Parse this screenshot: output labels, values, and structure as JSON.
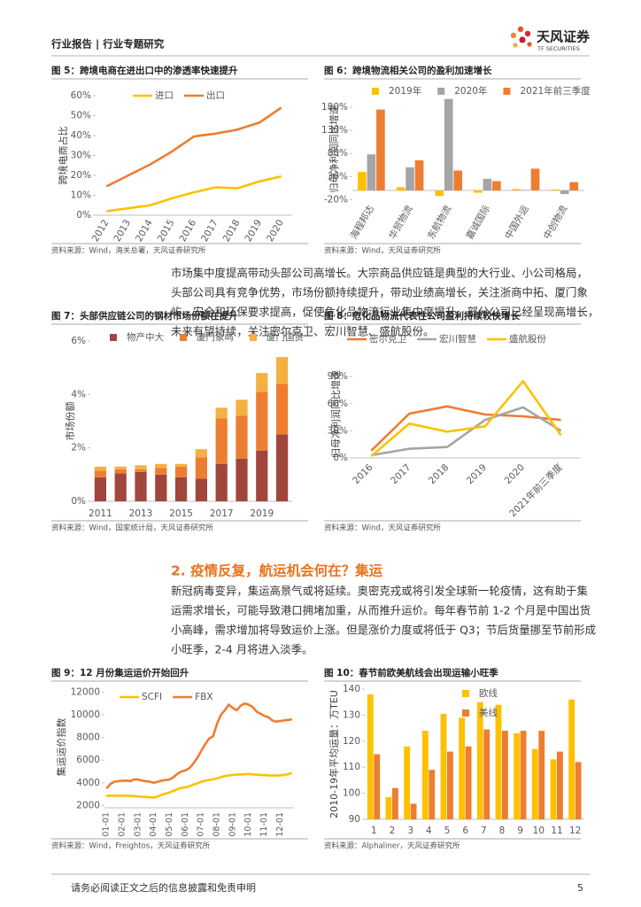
{
  "header": {
    "title": "行业报告 | 行业专题研究",
    "logo": "天风证券",
    "logo_sub": "TF SECURITIES"
  },
  "paragraphs": [
    [
      "市场集中度提高带动头部公司高增长。大宗商品供应链是典型的大行业、小公司格局，",
      "头部公司具有竞争优势，市场份额持续提升，带动业绩高增长，关注浙商中拓、厦门象",
      "屿。安全和环保要求提高，促使危化品物流行业集中度提升，部分公司已经呈现高增长，",
      "未来有望持续，关注密尔克卫、宏川智慧、盛航股份。"
    ],
    [
      "新冠病毒变异，集运高景气或将延续。奥密克戎或将引发全球新一轮疫情，这有助于集",
      "运需求增长，可能导致港口拥堵加重，从而推升运价。每年春节前 1-2 个月是中国出货",
      "小高峰，需求增加将导致运价上涨。但是涨价力度或将低于 Q3；节后货量挪至节前形成",
      "小旺季，2-4 月将进入淡季。"
    ]
  ],
  "section_heading": "2. 疫情反复，航运机会何在？集运",
  "footer": {
    "disclaimer": "请务必阅读正文之后的信息披露和免责申明",
    "page": 5
  },
  "chart_data": [
    {
      "type": "line",
      "title": "图 5：跨境电商在进出口中的渗透率快速提升",
      "source": "资料来源：Wind，海关总署，天风证券研究所",
      "ylabel": "跨境电商占比",
      "categories": [
        "2012",
        "2013",
        "2014",
        "2015",
        "2016",
        "2017",
        "2018",
        "2019",
        "2020"
      ],
      "series": [
        {
          "name": "进口",
          "color": "#ffc000",
          "values": [
            2,
            3.5,
            5,
            8.5,
            11.5,
            14,
            13.5,
            17,
            19.5
          ]
        },
        {
          "name": "出口",
          "color": "#ed7d31",
          "values": [
            14.5,
            20,
            25.5,
            32,
            39.5,
            41,
            43,
            46.5,
            54
          ]
        }
      ],
      "ylim": [
        0,
        60
      ],
      "yticks": [
        {
          "value": 0,
          "label": "0%"
        },
        {
          "value": 10,
          "label": "10%"
        },
        {
          "value": 20,
          "label": "20%"
        },
        {
          "value": 30,
          "label": "30%"
        },
        {
          "value": 40,
          "label": "40%"
        },
        {
          "value": 50,
          "label": "50%"
        },
        {
          "value": 60,
          "label": "60%"
        }
      ]
    },
    {
      "type": "bar",
      "title": "图 6：跨境物流相关公司的盈利加速增长",
      "source": "资料来源：Wind，天风证券研究所",
      "ylabel": "归母净利润同比增速",
      "categories": [
        "海程邦达",
        "华贸物流",
        "东航物流",
        "嘉诚国际",
        "中国外运",
        "中创物流"
      ],
      "series": [
        {
          "name": "2019年",
          "color": "#ffc000",
          "values": [
            40,
            7,
            -12,
            -5,
            3,
            2
          ]
        },
        {
          "name": "2020年",
          "color": "#a5a5a5",
          "values": [
            78,
            50,
            198,
            25,
            1,
            -8
          ]
        },
        {
          "name": "2021年前三季度",
          "color": "#ed7d31",
          "values": [
            175,
            65,
            43,
            20,
            47,
            18
          ]
        }
      ],
      "ylim": [
        -25,
        205
      ],
      "yticks": [
        {
          "value": -20,
          "label": "-20%"
        },
        {
          "value": 30,
          "label": "30%"
        },
        {
          "value": 80,
          "label": "80%"
        },
        {
          "value": 130,
          "label": "130%"
        },
        {
          "value": 180,
          "label": "180%"
        }
      ]
    },
    {
      "type": "bar",
      "stacked": true,
      "title": "图 7：头部供应链公司的钢材市场份额在提升",
      "source": "资料来源：Wind，国家统计局，天风证券研究所",
      "ylabel": "市场份额",
      "categories": [
        "2011",
        null,
        "2013",
        null,
        "2015",
        null,
        "2017",
        null,
        "2019",
        null
      ],
      "series": [
        {
          "name": "物产中大",
          "color": "#a0463c",
          "values": [
            0.9,
            1.05,
            1.1,
            1.0,
            0.9,
            0.85,
            1.4,
            1.6,
            1.9,
            2.5
          ]
        },
        {
          "name": "厦门象屿",
          "color": "#ed7d31",
          "values": [
            0.25,
            0.15,
            0.1,
            0.25,
            0.4,
            0.8,
            1.7,
            1.6,
            2.2,
            1.9
          ]
        },
        {
          "name": "厦门国贸",
          "color": "#f4b042",
          "values": [
            0.15,
            0.1,
            0.15,
            0.15,
            0.1,
            0.3,
            0.4,
            0.6,
            0.7,
            1.0
          ]
        }
      ],
      "ylim": [
        0,
        6
      ],
      "yticks": [
        {
          "value": 0,
          "label": "0%"
        },
        {
          "value": 2,
          "label": "2%"
        },
        {
          "value": 4,
          "label": "4%"
        },
        {
          "value": 6,
          "label": "6%"
        }
      ]
    },
    {
      "type": "line",
      "title": "图 8：危化品物流代表性公司盈利持续较快增长",
      "source": "资料来源：Wind，天风证券研究所",
      "ylabel": "归母净利润同比增速",
      "categories": [
        "2016",
        "2017",
        "2018",
        "2019",
        "2020",
        "2021年前三季度"
      ],
      "series": [
        {
          "name": "密尔克卫",
          "color": "#ed7d31",
          "values": [
            8,
            49,
            57,
            48,
            46,
            42
          ]
        },
        {
          "name": "宏川智慧",
          "color": "#a5a5a5",
          "values": [
            3,
            10,
            12,
            42,
            56,
            30
          ]
        },
        {
          "name": "盛航股份",
          "color": "#ffc000",
          "values": [
            2,
            38,
            29,
            35,
            85,
            25
          ]
        }
      ],
      "ylim": [
        -3,
        100
      ],
      "yticks": [
        {
          "value": 0,
          "label": "0%"
        },
        {
          "value": 30,
          "label": "30%"
        },
        {
          "value": 60,
          "label": "60%"
        },
        {
          "value": 90,
          "label": "90%"
        }
      ]
    },
    {
      "type": "line",
      "title": "图 9：12 月份集运运价开始回升",
      "source": "资料来源：Wind，Freightos，天风证券研究所",
      "ylabel": "集运运价指数",
      "categories": [
        "01-01",
        null,
        null,
        null,
        "02-01",
        null,
        null,
        null,
        "03-01",
        null,
        null,
        null,
        "04-01",
        null,
        null,
        null,
        "05-01",
        null,
        null,
        null,
        "06-01",
        null,
        null,
        null,
        "07-01",
        null,
        null,
        null,
        "08-01",
        null,
        null,
        null,
        "09-01",
        null,
        null,
        null,
        "10-01",
        null,
        null,
        null,
        "11-01",
        null,
        null,
        null,
        "12-01",
        null,
        null,
        null
      ],
      "series": [
        {
          "name": "SCFI",
          "color": "#ffc000",
          "values": [
            2850,
            2870,
            2860,
            2870,
            2880,
            2860,
            2850,
            2830,
            2800,
            2780,
            2750,
            2720,
            2700,
            2800,
            2950,
            3050,
            3150,
            3300,
            3450,
            3550,
            3600,
            3700,
            3850,
            3950,
            4100,
            4200,
            4250,
            4300,
            4400,
            4500,
            4600,
            4650,
            4700,
            4720,
            4740,
            4760,
            4780,
            4750,
            4720,
            4700,
            4680,
            4660,
            4650,
            4640,
            4660,
            4700,
            4760,
            4860
          ]
        },
        {
          "name": "FBX",
          "color": "#ed7d31",
          "values": [
            3500,
            3900,
            4100,
            4150,
            4180,
            4200,
            4150,
            4300,
            4300,
            4200,
            4150,
            4100,
            4000,
            4100,
            4200,
            4250,
            4300,
            4500,
            4800,
            5000,
            5100,
            5300,
            5700,
            6200,
            6800,
            7400,
            7900,
            8100,
            9200,
            10000,
            10400,
            10900,
            10600,
            10400,
            10800,
            11000,
            10900,
            10700,
            10300,
            10100,
            9900,
            9800,
            9500,
            9400,
            9450,
            9500,
            9550,
            9600
          ]
        }
      ],
      "ylim": [
        1800,
        12500
      ],
      "yticks": [
        2000,
        4000,
        6000,
        8000,
        10000,
        12000
      ]
    },
    {
      "type": "bar",
      "title": "图 10：春节前欧美航线会出现运输小旺季",
      "source": "资料来源：Alphaliner，天风证券研究所",
      "ylabel": "2010-19年平均运量：万TEU",
      "categories": [
        "1",
        "2",
        "3",
        "4",
        "5",
        "6",
        "7",
        "8",
        "9",
        "10",
        "11",
        "12"
      ],
      "series": [
        {
          "name": "欧线",
          "color": "#ffc000",
          "values": [
            138,
            98.5,
            118,
            124,
            130.5,
            129,
            135,
            134,
            123,
            117,
            113,
            136
          ]
        },
        {
          "name": "美线",
          "color": "#ed7d31",
          "values": [
            115,
            102,
            96,
            109,
            116,
            118,
            124.5,
            124,
            124,
            124,
            116,
            112
          ]
        }
      ],
      "ylim": [
        90,
        140
      ],
      "yticks": [
        90,
        100,
        110,
        120,
        130,
        140
      ]
    }
  ]
}
